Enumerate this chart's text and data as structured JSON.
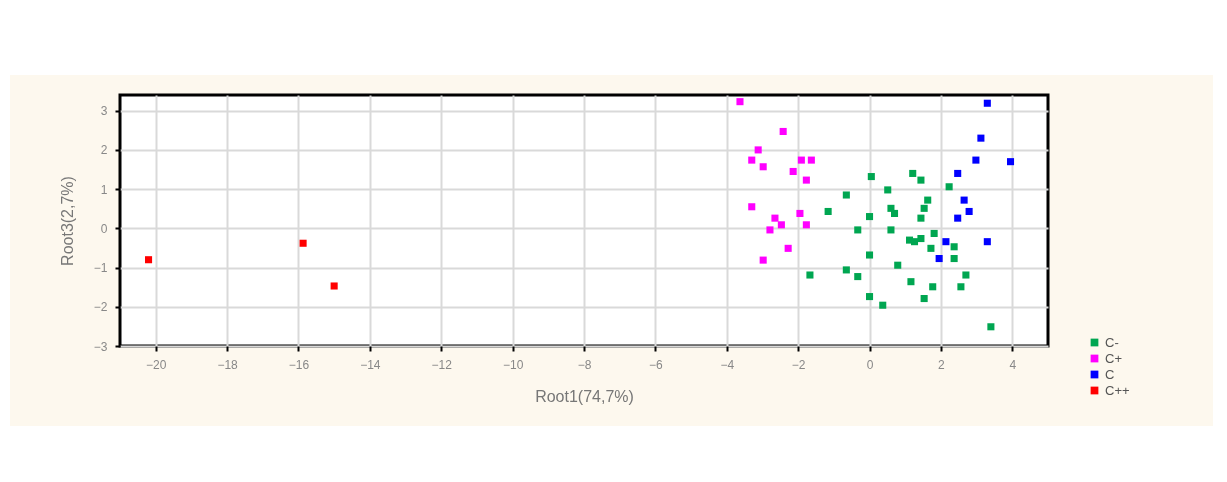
{
  "chart_data": {
    "type": "scatter",
    "xlabel": "Root1(74,7%)",
    "ylabel": "Root3(2,7%)",
    "xlim": [
      -21,
      5
    ],
    "xticks": [
      -20,
      -18,
      -16,
      -14,
      -12,
      -10,
      -8,
      -6,
      -4,
      -2,
      0,
      2,
      4
    ],
    "ylim": [
      -3,
      3.4
    ],
    "yticks": [
      -3,
      -2,
      -1,
      0,
      1,
      2,
      3
    ],
    "grid": true,
    "legend": "bottom right",
    "marker": "square",
    "series": [
      {
        "name": "C-",
        "color": "#00a651",
        "x": [
          1.21,
          1.44,
          0.05,
          2.23,
          0.51,
          -0.65,
          0.6,
          0.7,
          -1.16,
          1.63,
          1.53,
          1.44,
          0,
          -0.33,
          0.6,
          1.26,
          1.12,
          1.44,
          1.81,
          1.72,
          2.37,
          2.37,
          0,
          -0.65,
          -0.33,
          -1.67,
          0.79,
          1.16,
          1.77,
          1.53,
          2.56,
          2.7,
          0,
          0.37,
          3.4
        ],
        "values": [
          1.4,
          1.23,
          1.32,
          1.06,
          0.98,
          0.85,
          0.51,
          0.38,
          0.43,
          0.72,
          0.51,
          0.26,
          0.3,
          -0.04,
          -0.04,
          -0.34,
          -0.3,
          -0.26,
          -0.13,
          -0.51,
          -0.47,
          -0.77,
          -0.68,
          -1.06,
          -1.23,
          -1.19,
          -0.94,
          -1.36,
          -1.49,
          -1.79,
          -1.49,
          -1.19,
          -1.74,
          -1.96,
          -2.51
        ]
      },
      {
        "name": "C+",
        "color": "#ff00ff",
        "x": [
          -3.63,
          -2.42,
          -3.12,
          -3.3,
          -2.98,
          -1.91,
          -1.63,
          -2.14,
          -1.77,
          -3.3,
          -2.65,
          -2.79,
          -2.47,
          -1.95,
          -1.77,
          -2.28,
          -2.98
        ],
        "values": [
          3.23,
          2.47,
          2.0,
          1.74,
          1.57,
          1.74,
          1.74,
          1.45,
          1.23,
          0.55,
          0.26,
          -0.04,
          0.09,
          0.38,
          0.09,
          -0.51,
          -0.81
        ]
      },
      {
        "name": "C",
        "color": "#0000ff",
        "x": [
          3.3,
          3.12,
          2.98,
          3.95,
          2.47,
          2.65,
          2.79,
          2.47,
          2.14,
          3.3,
          1.95
        ],
        "values": [
          3.19,
          2.3,
          1.74,
          1.7,
          1.4,
          0.72,
          0.43,
          0.26,
          -0.34,
          -0.34,
          -0.77
        ]
      },
      {
        "name": "C++",
        "color": "#ff0000",
        "x": [
          -20.2,
          -15.87,
          -15.0
        ],
        "values": [
          -0.8,
          -0.38,
          -1.47
        ]
      }
    ]
  }
}
